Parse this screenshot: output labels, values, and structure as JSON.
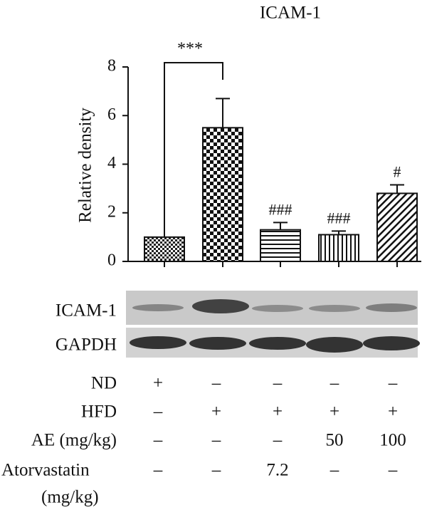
{
  "chart_data": {
    "type": "bar",
    "title": "ICAM-1",
    "ylabel": "Relative density",
    "values": [
      1.0,
      5.5,
      1.3,
      1.1,
      2.8
    ],
    "errors": [
      0,
      1.2,
      0.3,
      0.15,
      0.35
    ],
    "significance": [
      null,
      null,
      "###",
      "###",
      "#"
    ],
    "comparison_label": "***",
    "ylim": [
      0,
      8
    ],
    "yticks": [
      0,
      2,
      4,
      6,
      8
    ],
    "color": "#111111"
  },
  "blot": {
    "rows": [
      "ICAM-1",
      "GAPDH"
    ]
  },
  "treatments": {
    "rows": [
      {
        "label": [
          "ND"
        ],
        "cells": [
          "+",
          "–",
          "–",
          "–",
          "–"
        ]
      },
      {
        "label": [
          "HFD"
        ],
        "cells": [
          "–",
          "+",
          "+",
          "+",
          "+"
        ]
      },
      {
        "label": [
          "AE (mg/kg)"
        ],
        "cells": [
          "–",
          "–",
          "–",
          "50",
          "100"
        ]
      },
      {
        "label": [
          "Atorvastatin",
          "(mg/kg)"
        ],
        "cells": [
          "–",
          "–",
          "7.2",
          "–",
          "–"
        ]
      }
    ]
  }
}
